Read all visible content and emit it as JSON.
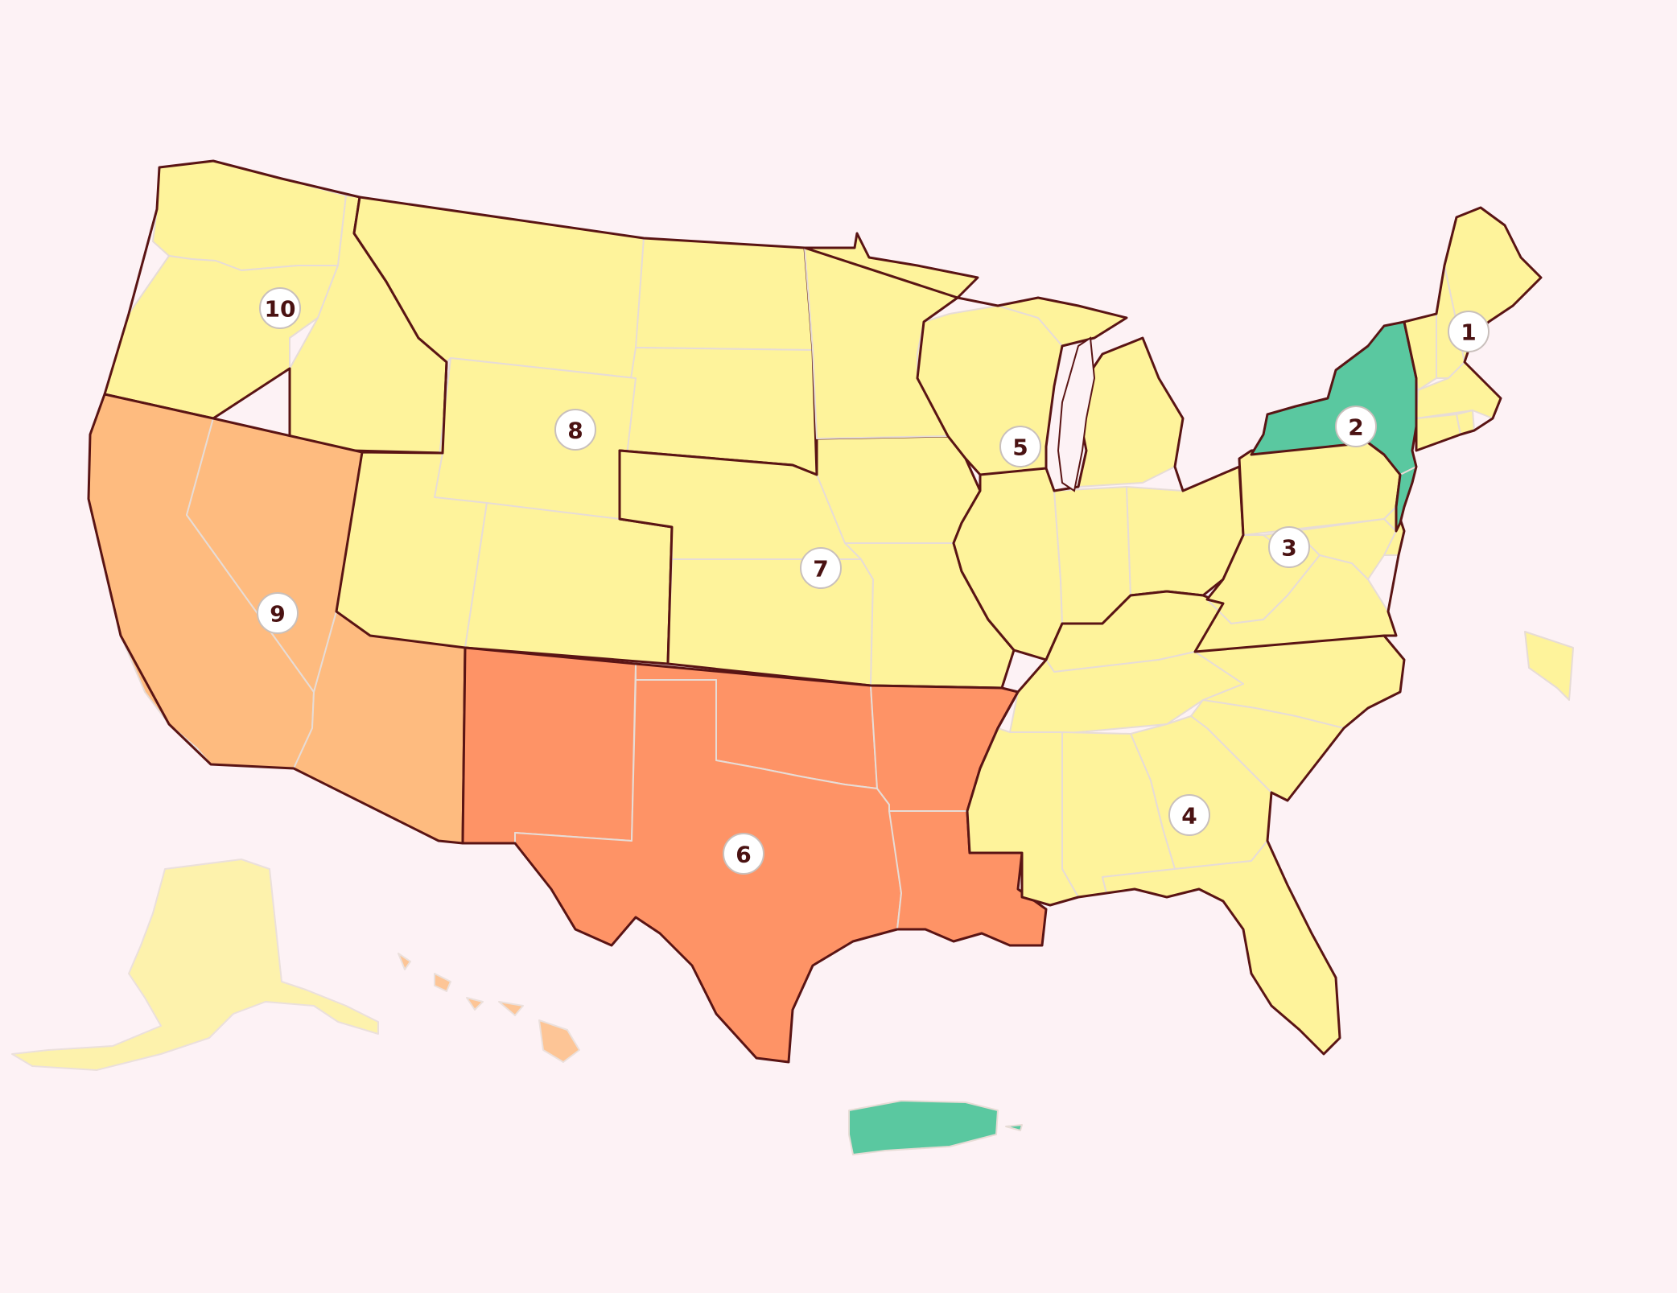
{
  "colors": {
    "background": "#fdf2f5",
    "level_low": "#fef39b",
    "level_green": "#5ac8a0",
    "level_medium": "#febb7f",
    "level_high": "#fe9366",
    "border": "#5a1414",
    "state_line": "#e7dcd6"
  },
  "regions": [
    {
      "number": "1",
      "level": "level_low",
      "states": [
        "ME",
        "NH",
        "VT",
        "MA",
        "RI",
        "CT"
      ]
    },
    {
      "number": "2",
      "level": "level_green",
      "states": [
        "NY",
        "NJ",
        "PR"
      ]
    },
    {
      "number": "3",
      "level": "level_low",
      "states": [
        "PA",
        "WV",
        "VA",
        "MD",
        "DE",
        "DC"
      ]
    },
    {
      "number": "4",
      "level": "level_low",
      "states": [
        "KY",
        "TN",
        "NC",
        "SC",
        "GA",
        "AL",
        "MS",
        "FL"
      ]
    },
    {
      "number": "5",
      "level": "level_low",
      "states": [
        "MN",
        "WI",
        "MI",
        "IL",
        "IN",
        "OH"
      ]
    },
    {
      "number": "6",
      "level": "level_high",
      "states": [
        "NM",
        "TX",
        "OK",
        "AR",
        "LA"
      ]
    },
    {
      "number": "7",
      "level": "level_low",
      "states": [
        "NE",
        "KS",
        "IA",
        "MO"
      ]
    },
    {
      "number": "8",
      "level": "level_low",
      "states": [
        "MT",
        "ND",
        "SD",
        "WY",
        "CO",
        "UT"
      ]
    },
    {
      "number": "9",
      "level": "level_medium",
      "states": [
        "CA",
        "NV",
        "AZ",
        "HI"
      ]
    },
    {
      "number": "10",
      "level": "level_low",
      "states": [
        "WA",
        "OR",
        "ID",
        "AK"
      ]
    }
  ],
  "extra_territories": [
    {
      "name": "Virgin Islands",
      "level": "level_low"
    }
  ]
}
